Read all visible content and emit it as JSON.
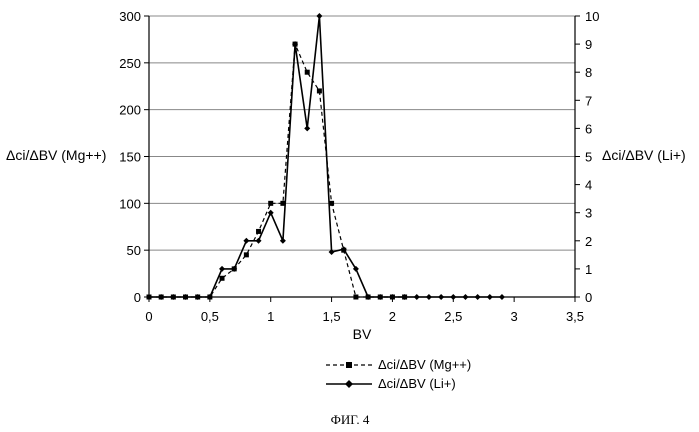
{
  "chart_data": {
    "type": "line",
    "xlabel": "BV",
    "ylabel_left": "Δci/ΔBV (Mg++)",
    "ylabel_right": "Δci/ΔBV (Li+)",
    "xlim": [
      0,
      3.5
    ],
    "ylim_left": [
      0,
      300
    ],
    "ylim_right": [
      0,
      10
    ],
    "x_ticks": [
      0,
      0.5,
      1,
      1.5,
      2,
      2.5,
      3,
      3.5
    ],
    "x_tick_labels": [
      "0",
      "0,5",
      "1",
      "1,5",
      "2",
      "2,5",
      "3",
      "3,5"
    ],
    "y_left_ticks": [
      0,
      50,
      100,
      150,
      200,
      250,
      300
    ],
    "y_right_ticks": [
      0,
      1,
      2,
      3,
      4,
      5,
      6,
      7,
      8,
      9,
      10
    ],
    "grid": "horizontal",
    "legend_position": "bottom-center",
    "series": [
      {
        "name": "Δci/ΔBV (Mg++)",
        "axis": "left",
        "style": "dashed",
        "marker": "square",
        "x": [
          0,
          0.1,
          0.2,
          0.3,
          0.4,
          0.5,
          0.6,
          0.7,
          0.8,
          0.9,
          1.0,
          1.1,
          1.2,
          1.3,
          1.4,
          1.5,
          1.6,
          1.7,
          1.8,
          1.9,
          2.0,
          2.1
        ],
        "y": [
          0,
          0,
          0,
          0,
          0,
          0,
          20,
          30,
          45,
          70,
          100,
          100,
          270,
          240,
          220,
          100,
          50,
          0,
          0,
          0,
          0,
          0
        ]
      },
      {
        "name": "Δci/ΔBV (Li+)",
        "axis": "right",
        "style": "solid",
        "marker": "diamond",
        "x": [
          0,
          0.1,
          0.2,
          0.3,
          0.4,
          0.5,
          0.6,
          0.7,
          0.8,
          0.9,
          1.0,
          1.1,
          1.2,
          1.3,
          1.4,
          1.5,
          1.6,
          1.7,
          1.8,
          1.9,
          2.0,
          2.1,
          2.2,
          2.3,
          2.4,
          2.5,
          2.6,
          2.7,
          2.8,
          2.9
        ],
        "y": [
          0,
          0,
          0,
          0,
          0,
          0,
          1,
          1,
          2,
          2,
          3,
          2,
          9,
          6,
          10,
          1.6,
          1.7,
          1.0,
          0,
          0,
          0,
          0,
          0,
          0,
          0,
          0,
          0,
          0,
          0,
          0
        ]
      }
    ]
  },
  "caption": "ФИГ. 4"
}
